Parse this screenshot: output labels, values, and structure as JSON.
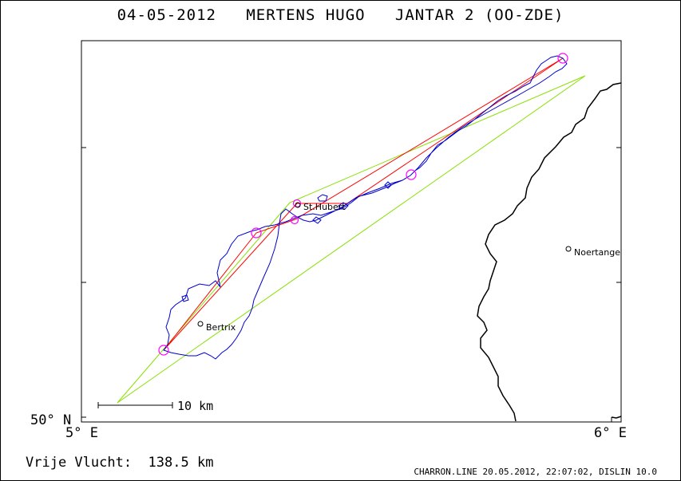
{
  "title": {
    "date": "04-05-2012",
    "pilot": "MERTENS HUGO",
    "glider": "JANTAR 2 (OO-ZDE)"
  },
  "axes": {
    "y_min_label": "50° N",
    "x_min_label": "5° E",
    "x_max_label": "6° E"
  },
  "scale_bar": {
    "label": "10 km"
  },
  "places": [
    {
      "name": "St.Hubert"
    },
    {
      "name": "Bertrix"
    },
    {
      "name": "Noertange"
    }
  ],
  "flight": {
    "label": "Vrije Vlucht:",
    "distance": "138.5 km"
  },
  "footer": "CHARRON.LINE 20.05.2012, 22:07:02, DISLIN 10.0",
  "colors": {
    "track": "#0000cc",
    "task_line": "#ff0000",
    "triangle": "#88e000",
    "turnpoint": "#ff00ff",
    "border": "#000000"
  }
}
